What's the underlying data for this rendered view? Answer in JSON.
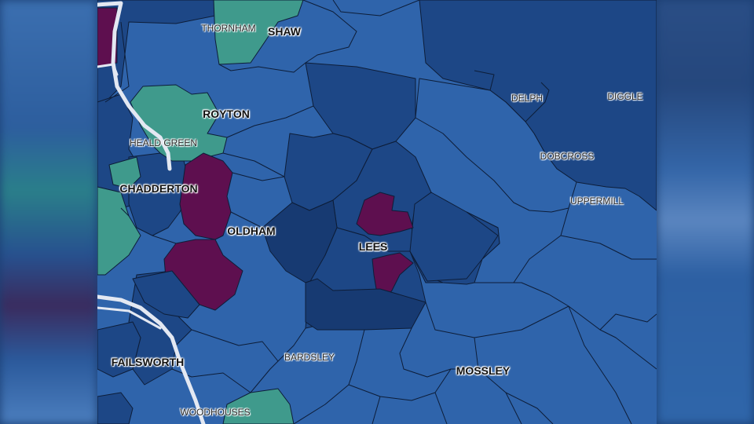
{
  "map": {
    "colors": {
      "mid_blue": "#2f64ab",
      "dark_blue": "#1d4786",
      "navy": "#173a72",
      "teal": "#3f9a8c",
      "purple": "#5e0f4f",
      "road": "#e3e8f2",
      "boundary": "#0d1d38"
    },
    "place_labels": [
      {
        "name": "THORNHAM",
        "kind": "village"
      },
      {
        "name": "SHAW",
        "kind": "town"
      },
      {
        "name": "DELPH",
        "kind": "village"
      },
      {
        "name": "DIGGLE",
        "kind": "village"
      },
      {
        "name": "ROYTON",
        "kind": "town"
      },
      {
        "name": "HEALD GREEN",
        "kind": "village"
      },
      {
        "name": "DOBCROSS",
        "kind": "village"
      },
      {
        "name": "CHADDERTON",
        "kind": "town"
      },
      {
        "name": "UPPERMILL",
        "kind": "village"
      },
      {
        "name": "OLDHAM",
        "kind": "town"
      },
      {
        "name": "LEES",
        "kind": "town"
      },
      {
        "name": "BARDSLEY",
        "kind": "village"
      },
      {
        "name": "FAILSWORTH",
        "kind": "town"
      },
      {
        "name": "MOSSLEY",
        "kind": "town"
      },
      {
        "name": "WOODHOUSES",
        "kind": "village"
      }
    ]
  }
}
